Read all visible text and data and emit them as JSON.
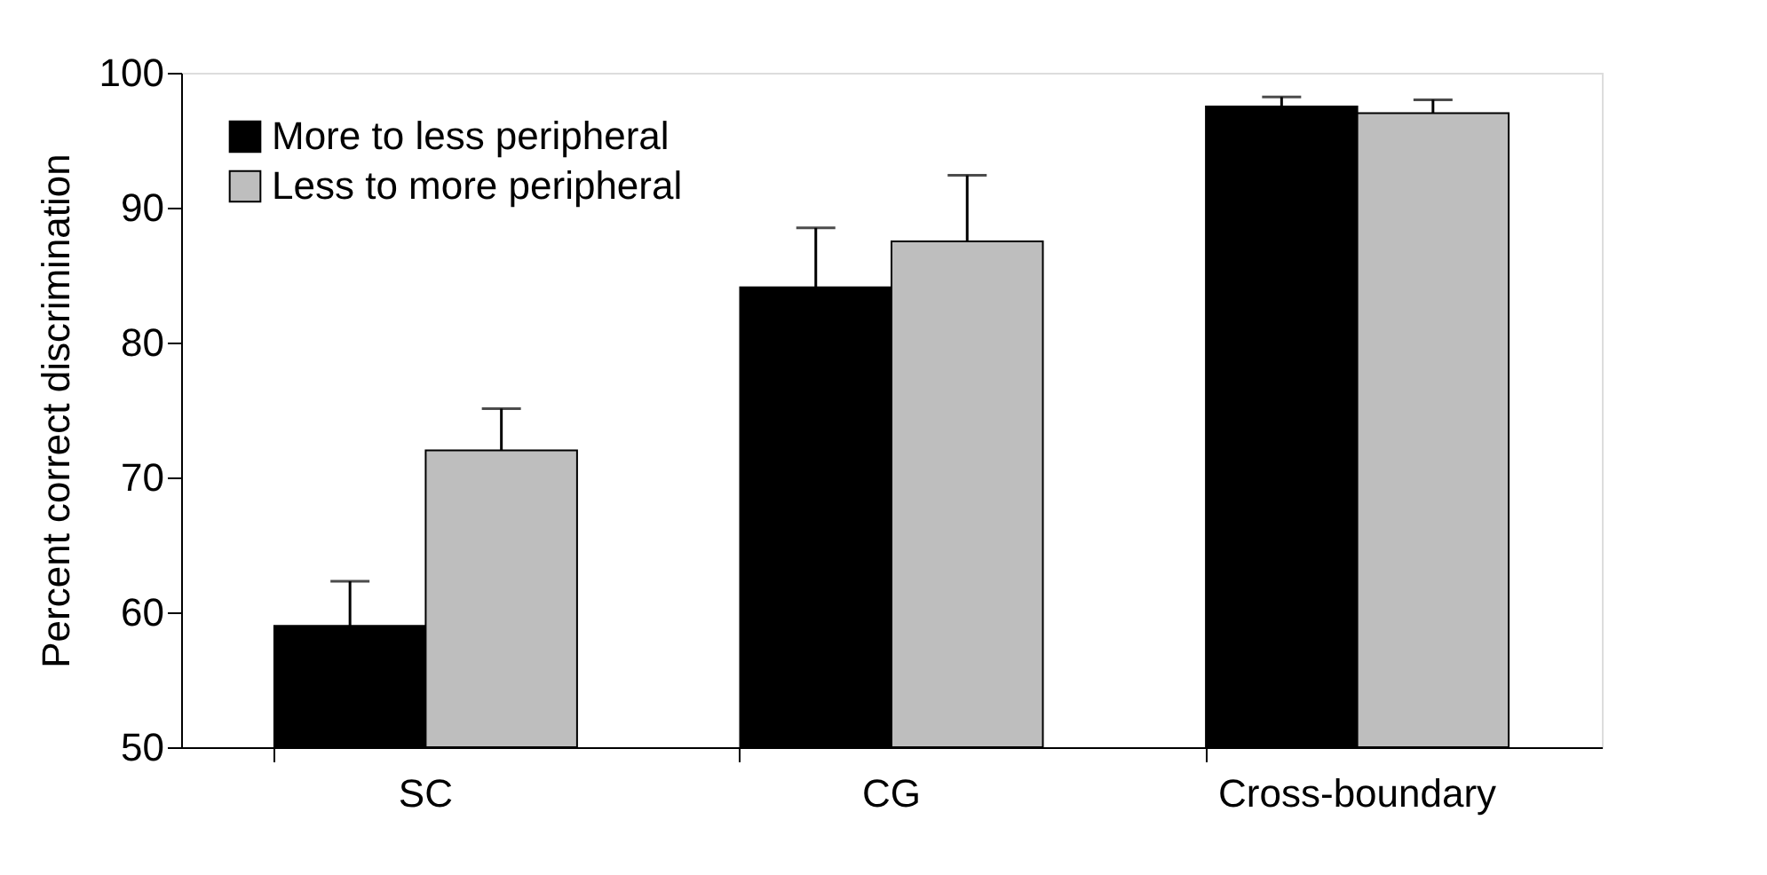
{
  "chart_data": {
    "type": "bar",
    "ylabel": "Percent correct discrimination",
    "categories": [
      "SC",
      "CG",
      "Cross-boundary"
    ],
    "series": [
      {
        "name": "More to less peripheral",
        "color": "#000000",
        "values": [
          59.0,
          84.1,
          97.5
        ],
        "errors": [
          [
            59.0,
            62.3
          ],
          [
            84.1,
            88.5
          ],
          [
            97.5,
            98.2
          ]
        ]
      },
      {
        "name": "Less to more peripheral",
        "color": "#bebebe",
        "values": [
          72.0,
          87.5,
          97.0
        ],
        "errors": [
          [
            72.0,
            75.1
          ],
          [
            87.5,
            92.4
          ],
          [
            97.0,
            98.0
          ]
        ]
      }
    ],
    "ylim": [
      50,
      100
    ],
    "yticks": [
      50,
      60,
      70,
      80,
      90,
      100
    ],
    "grid": false,
    "legend": "top left"
  }
}
